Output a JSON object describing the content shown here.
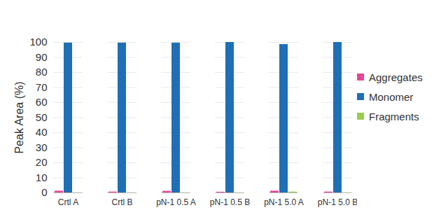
{
  "chart_data": {
    "type": "bar",
    "y_label": "Peak Area (%)",
    "categories": [
      "Crtl A",
      "Crtl B",
      "pN-1 0.5 A",
      "pN-1 0.5 B",
      "pN-1 5.0 A",
      "pN-1 5.0 B"
    ],
    "series": [
      {
        "name": "Aggregates",
        "color": "#e8449a",
        "values": [
          1.2,
          0.6,
          1.1,
          0.5,
          1.2,
          0.6
        ]
      },
      {
        "name": "Monomer",
        "color": "#1f6fb5",
        "values": [
          99.6,
          99.6,
          99.6,
          100,
          98.6,
          100
        ]
      },
      {
        "name": "Fragments",
        "color": "#9acd4a",
        "values": [
          0.1,
          0.1,
          0.1,
          0.1,
          0.6,
          0.1
        ]
      }
    ],
    "ylim": [
      0,
      100
    ],
    "yticks": [
      0,
      10,
      20,
      30,
      40,
      50,
      60,
      70,
      80,
      90,
      100
    ],
    "grid": true,
    "legend": "right"
  }
}
